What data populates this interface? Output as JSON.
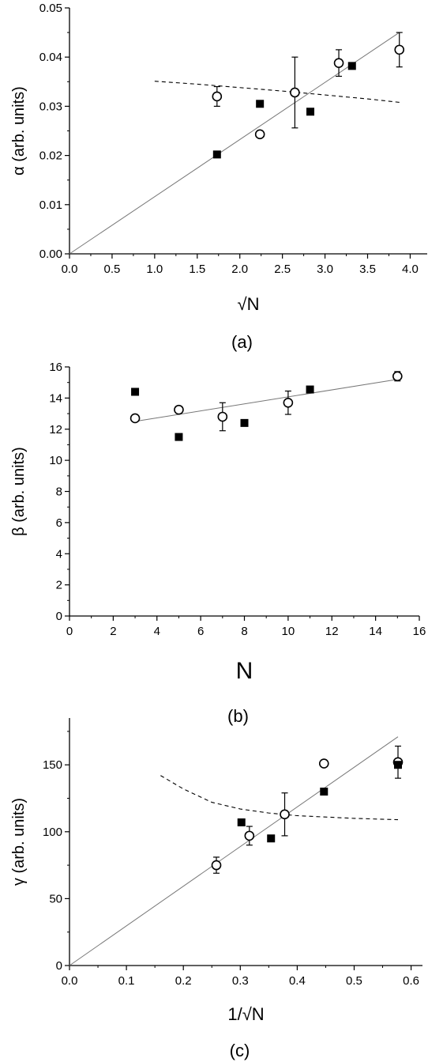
{
  "chart_data": [
    {
      "type": "scatter",
      "panel_label": "(a)",
      "xlabel": "√N",
      "ylabel": "α (arb. units)",
      "xlim": [
        0.0,
        4.2
      ],
      "ylim": [
        0.0,
        0.05
      ],
      "xticks": [
        "0.0",
        "0.5",
        "1.0",
        "1.5",
        "2.0",
        "2.5",
        "3.0",
        "3.5",
        "4.0"
      ],
      "yticks": [
        "0.00",
        "0.01",
        "0.02",
        "0.03",
        "0.04",
        "0.05"
      ],
      "series": [
        {
          "marker": "open-circle",
          "x": [
            1.732,
            2.236,
            2.646,
            3.162,
            3.873
          ],
          "y": [
            0.032,
            0.0243,
            0.0328,
            0.0388,
            0.0415
          ],
          "err": [
            0.002,
            0.0,
            0.0072,
            0.0027,
            0.0035
          ]
        },
        {
          "marker": "filled-square",
          "x": [
            1.732,
            2.236,
            2.828,
            3.317
          ],
          "y": [
            0.0202,
            0.0305,
            0.0289,
            0.0382
          ],
          "err": [
            0,
            0,
            0,
            0
          ]
        }
      ],
      "fit_line": {
        "x": [
          0.0,
          3.873
        ],
        "y": [
          0.0,
          0.045
        ]
      },
      "dashed_curve": {
        "x": [
          1.0,
          1.5,
          2.0,
          2.5,
          3.0,
          3.5,
          3.873
        ],
        "y": [
          0.0351,
          0.0345,
          0.0338,
          0.0331,
          0.0323,
          0.0315,
          0.0308
        ]
      }
    },
    {
      "type": "scatter",
      "panel_label": "(b)",
      "xlabel": "N",
      "ylabel": "β (arb. units)",
      "xlim": [
        0,
        16
      ],
      "ylim": [
        0,
        16
      ],
      "xticks": [
        "0",
        "2",
        "4",
        "6",
        "8",
        "10",
        "12",
        "14",
        "16"
      ],
      "yticks": [
        "0",
        "2",
        "4",
        "6",
        "8",
        "10",
        "12",
        "14",
        "16"
      ],
      "series": [
        {
          "marker": "open-circle",
          "x": [
            3,
            5,
            7,
            10,
            15
          ],
          "y": [
            12.7,
            13.25,
            12.8,
            13.7,
            15.4
          ],
          "err": [
            0.1,
            0.2,
            0.9,
            0.75,
            0.3
          ]
        },
        {
          "marker": "filled-square",
          "x": [
            3,
            5,
            8,
            11
          ],
          "y": [
            14.4,
            11.5,
            12.4,
            14.55
          ],
          "err": [
            0,
            0,
            0,
            0
          ]
        }
      ],
      "fit_line": {
        "x": [
          3,
          15
        ],
        "y": [
          12.5,
          15.2
        ]
      },
      "dashed_curve": null
    },
    {
      "type": "scatter",
      "panel_label": "(c)",
      "xlabel": "1/√N",
      "ylabel": "γ (arb. units)",
      "xlim": [
        0.0,
        0.62
      ],
      "ylim": [
        0,
        185
      ],
      "xticks": [
        "0.0",
        "0.1",
        "0.2",
        "0.3",
        "0.4",
        "0.5",
        "0.6"
      ],
      "yticks": [
        "0",
        "50",
        "100",
        "150"
      ],
      "series": [
        {
          "marker": "open-circle",
          "x": [
            0.258,
            0.316,
            0.378,
            0.447,
            0.577
          ],
          "y": [
            75,
            97,
            113,
            151,
            152
          ],
          "err": [
            6,
            7,
            16,
            0,
            12
          ]
        },
        {
          "marker": "filled-square",
          "x": [
            0.302,
            0.354,
            0.447,
            0.577
          ],
          "y": [
            107,
            95,
            130,
            150
          ],
          "err": [
            0,
            0,
            0,
            0
          ]
        }
      ],
      "fit_line": {
        "x": [
          0.0,
          0.577
        ],
        "y": [
          0,
          171
        ]
      },
      "dashed_curve": {
        "x": [
          0.16,
          0.2,
          0.25,
          0.3,
          0.35,
          0.4,
          0.45,
          0.5,
          0.577
        ],
        "y": [
          142,
          132,
          122,
          117,
          114,
          112,
          111,
          110,
          109
        ]
      }
    }
  ]
}
